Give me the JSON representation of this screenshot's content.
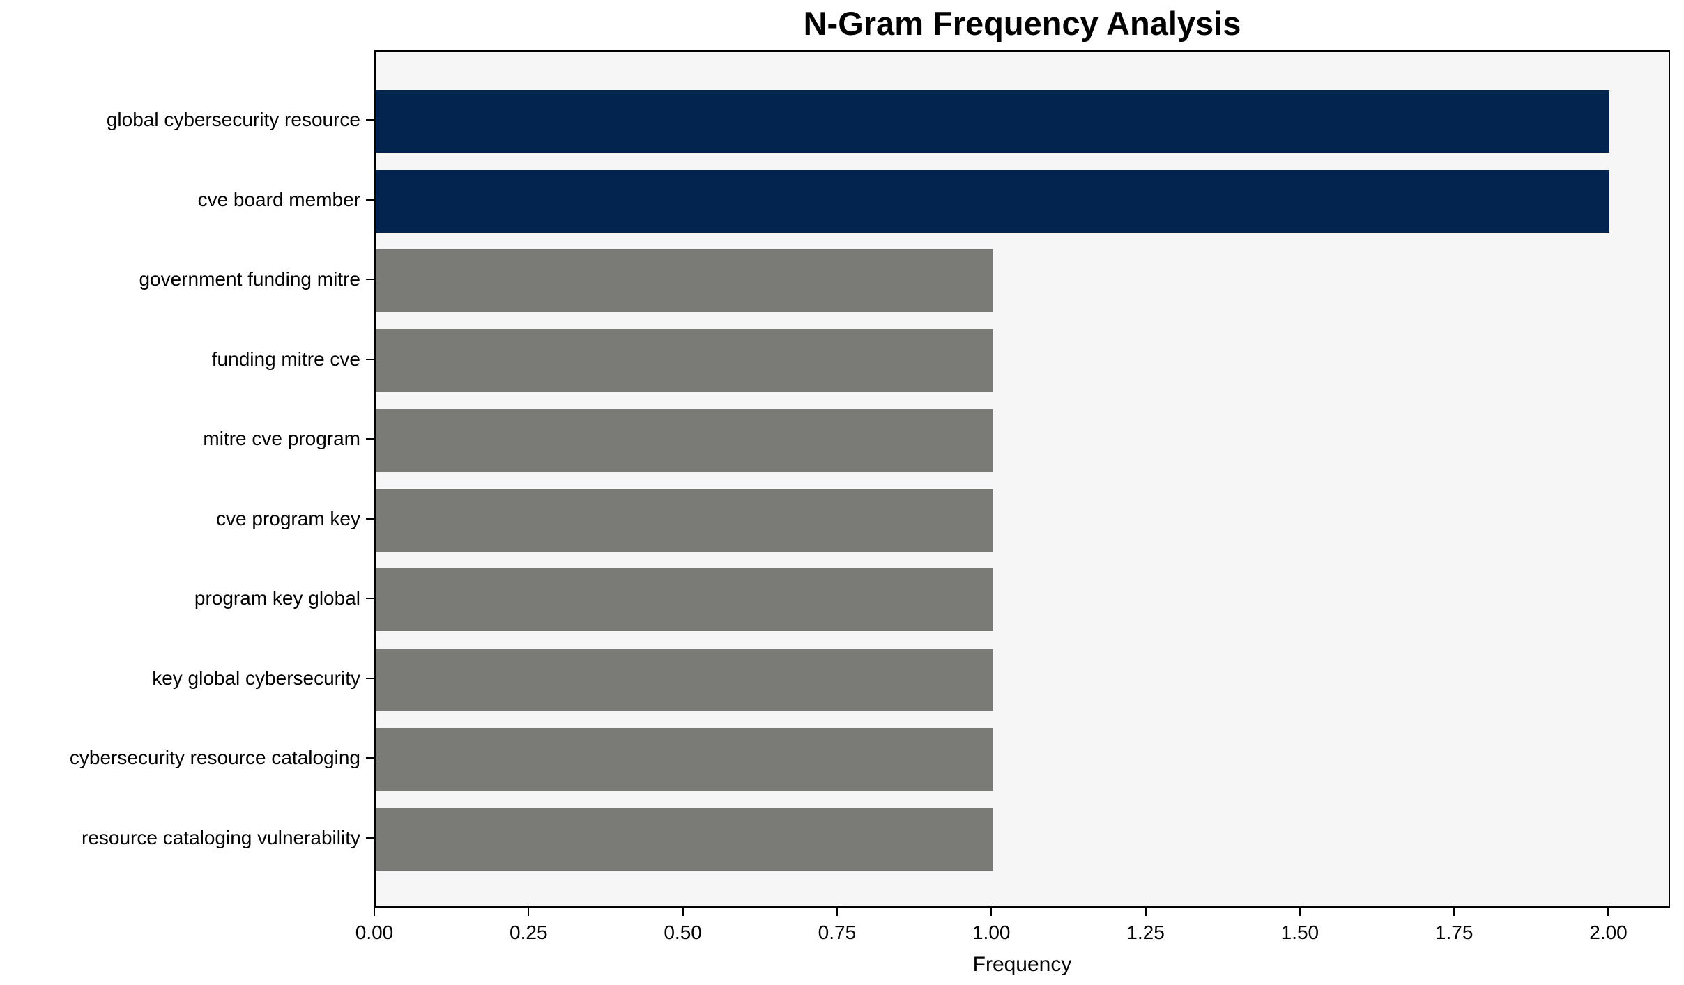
{
  "chart_data": {
    "type": "bar",
    "orientation": "horizontal",
    "title": "N-Gram Frequency Analysis",
    "xlabel": "Frequency",
    "ylabel": "",
    "categories": [
      "global cybersecurity resource",
      "cve board member",
      "government funding mitre",
      "funding mitre cve",
      "mitre cve program",
      "cve program key",
      "program key global",
      "key global cybersecurity",
      "cybersecurity resource cataloging",
      "resource cataloging vulnerability"
    ],
    "values": [
      2,
      2,
      1,
      1,
      1,
      1,
      1,
      1,
      1,
      1
    ],
    "bar_colors": [
      "#02244e",
      "#02244e",
      "#7a7a77",
      "#7a7a77",
      "#7a7a77",
      "#7a7a77",
      "#7a7a77",
      "#7a7a77",
      "#7a7a77",
      "#7a7a77"
    ],
    "highlight_color": "#02244e",
    "default_color": "#7a7a77",
    "xlim": [
      0,
      2.1
    ],
    "xticks": [
      "0.00",
      "0.25",
      "0.50",
      "0.75",
      "1.00",
      "1.25",
      "1.50",
      "1.75",
      "2.00"
    ],
    "xtick_values": [
      0,
      0.25,
      0.5,
      0.75,
      1.0,
      1.25,
      1.5,
      1.75,
      2.0
    ],
    "grid": false,
    "legend_position": "none",
    "plot_background": "#f6f6f6",
    "figure_background": "#ffffff",
    "frame_color": "#000000"
  }
}
